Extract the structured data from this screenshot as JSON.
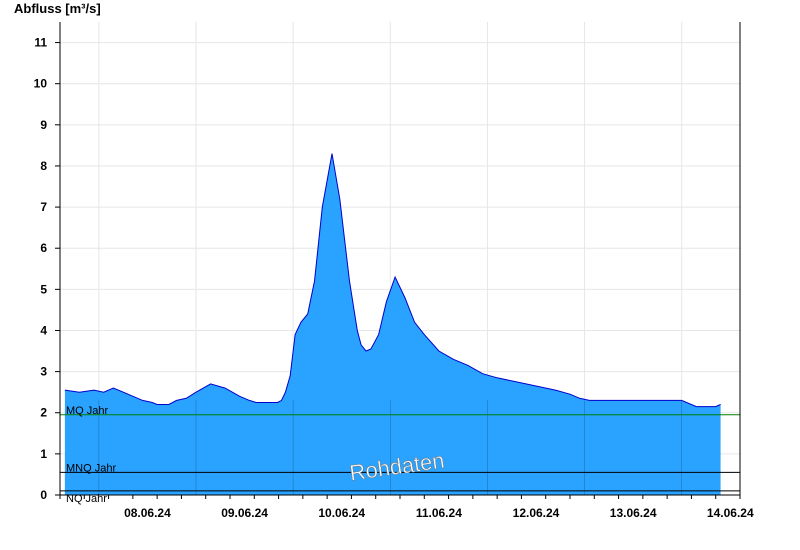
{
  "chart_data": {
    "type": "area",
    "title": "",
    "ylabel": "Abfluss [m³/s]",
    "xlabel": "",
    "ylim": [
      0,
      11.5
    ],
    "y_ticks": [
      "0",
      "1",
      "2",
      "3",
      "4",
      "5",
      "6",
      "7",
      "8",
      "9",
      "10",
      "11"
    ],
    "x_ticks": [
      "08.06.24",
      "09.06.24",
      "10.06.24",
      "11.06.24",
      "12.06.24",
      "13.06.24",
      "14.06.24"
    ],
    "grid": true,
    "fill_color": "#29a3ff",
    "line_color": "#0000cc",
    "series": [
      {
        "x": [
          7.65,
          7.8,
          7.95,
          8.05,
          8.15,
          8.3,
          8.45,
          8.55,
          8.6,
          8.72,
          8.8,
          8.9,
          9.0,
          9.15,
          9.3,
          9.45,
          9.55,
          9.62,
          9.68,
          9.72,
          9.78,
          9.84,
          9.88,
          9.92,
          9.97,
          10.02,
          10.08,
          10.15,
          10.22,
          10.3,
          10.4,
          10.48,
          10.54,
          10.58,
          10.62,
          10.66,
          10.7,
          10.75,
          10.8,
          10.88,
          10.96,
          11.05,
          11.15,
          11.25,
          11.35,
          11.5,
          11.65,
          11.8,
          11.95,
          12.1,
          12.3,
          12.5,
          12.7,
          12.85,
          12.95,
          13.05,
          13.12,
          13.17,
          13.22,
          13.3,
          13.4,
          13.55,
          13.7,
          13.85,
          14.0,
          14.15,
          14.25,
          14.35,
          14.4
        ],
        "values": [
          2.55,
          2.5,
          2.55,
          2.5,
          2.6,
          2.45,
          2.3,
          2.25,
          2.2,
          2.2,
          2.3,
          2.35,
          2.5,
          2.7,
          2.6,
          2.4,
          2.3,
          2.25,
          2.25,
          2.25,
          2.25,
          2.25,
          2.3,
          2.5,
          2.9,
          3.9,
          4.2,
          4.4,
          5.2,
          7.0,
          8.3,
          7.2,
          6.0,
          5.2,
          4.6,
          4.0,
          3.65,
          3.5,
          3.55,
          3.9,
          4.7,
          5.3,
          4.8,
          4.2,
          3.9,
          3.5,
          3.3,
          3.15,
          2.95,
          2.85,
          2.75,
          2.65,
          2.55,
          2.45,
          2.35,
          2.3,
          2.3,
          2.3,
          2.3,
          2.3,
          2.3,
          2.3,
          2.3,
          2.3,
          2.3,
          2.15,
          2.15,
          2.15,
          2.2
        ]
      }
    ],
    "reference_lines": [
      {
        "label": "MQ Jahr",
        "value": 1.95,
        "color": "#008000"
      },
      {
        "label": "MNQ Jahr",
        "value": 0.55,
        "color": "#000000"
      },
      {
        "label": "NQ Jahr",
        "value": 0.1,
        "color": "#000000"
      }
    ]
  },
  "watermark": "Rohdaten"
}
